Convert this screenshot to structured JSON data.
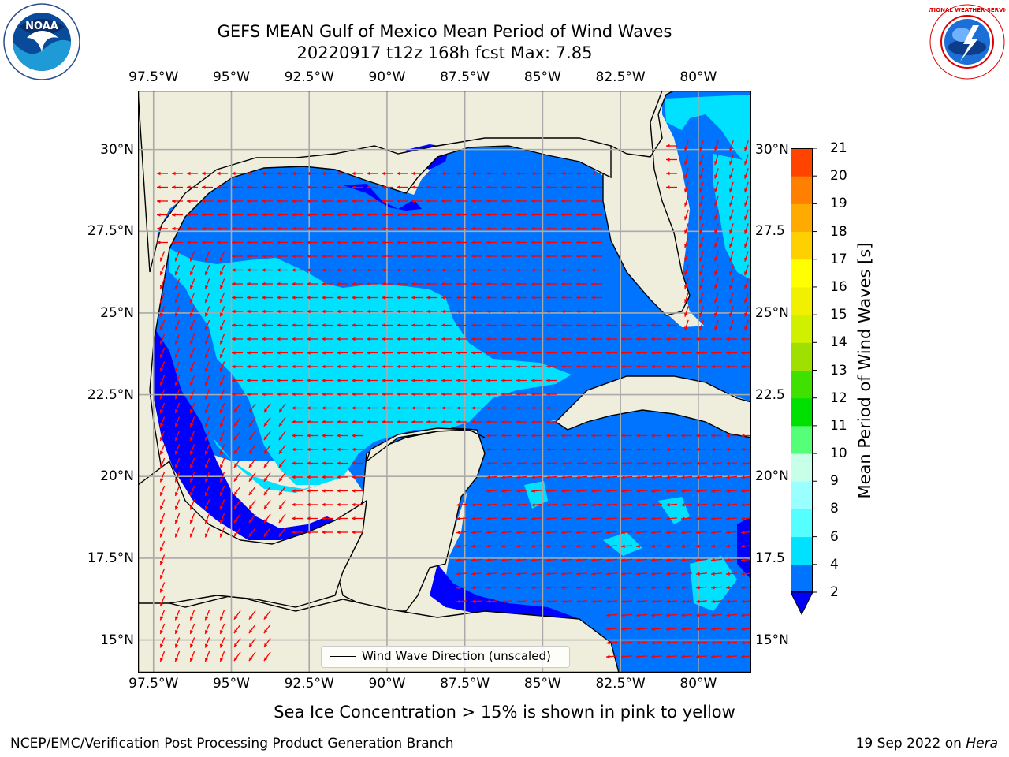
{
  "title_line1": "GEFS MEAN Gulf of Mexico Mean Period of Wind Waves",
  "title_line2": "20220917 t12z 168h fcst   Max: 7.85",
  "logos": {
    "left": "NOAA",
    "right": "NATIONAL WEATHER SERVICE"
  },
  "map": {
    "lon_range": [
      -98,
      -78.3
    ],
    "lat_range": [
      14.0,
      31.8
    ],
    "lon_ticks": [
      "97.5°W",
      "95°W",
      "92.5°W",
      "90°W",
      "87.5°W",
      "85°W",
      "82.5°W",
      "80°W"
    ],
    "lon_tick_values": [
      -97.5,
      -95,
      -92.5,
      -90,
      -87.5,
      -85,
      -82.5,
      -80
    ],
    "lat_ticks_left": [
      "15°N",
      "17.5°N",
      "20°N",
      "22.5°N",
      "25°N",
      "27.5°N",
      "30°N"
    ],
    "lat_ticks_right": [
      "15°N",
      "17.5",
      "20°N",
      "22.5",
      "25°N",
      "27.5",
      "30°N"
    ],
    "lat_tick_values": [
      15,
      17.5,
      20,
      22.5,
      25,
      27.5,
      30
    ],
    "grid": true,
    "land_color": "#efeddc",
    "arrow_color": "#ff0000",
    "arrow_direction_text": "wind-wave direction arrows, mostly toward west/southwest"
  },
  "legend": {
    "label": "Wind Wave Direction (unscaled)"
  },
  "colorbar": {
    "title": "Mean Period of Wind Waves [s]",
    "ticks": [
      "2",
      "4",
      "6",
      "8",
      "9",
      "10",
      "11",
      "12",
      "13",
      "14",
      "15",
      "16",
      "17",
      "18",
      "19",
      "20",
      "21"
    ],
    "colors": [
      "#0073ff",
      "#00e1ff",
      "#55ffff",
      "#99ffff",
      "#c8ffe8",
      "#55ff77",
      "#00e000",
      "#40e000",
      "#a0e000",
      "#d0f000",
      "#f0f000",
      "#ffff00",
      "#ffd000",
      "#ffaa00",
      "#ff7f00",
      "#ff4400",
      "#ff0000"
    ],
    "under_color": "#0000ff"
  },
  "caption": "Sea Ice Concentration > 15% is shown in pink to yellow",
  "footer_left": "NCEP/EMC/Verification Post Processing Product Generation Branch",
  "footer_date": "19 Sep 2022 on ",
  "footer_host": "Hera"
}
